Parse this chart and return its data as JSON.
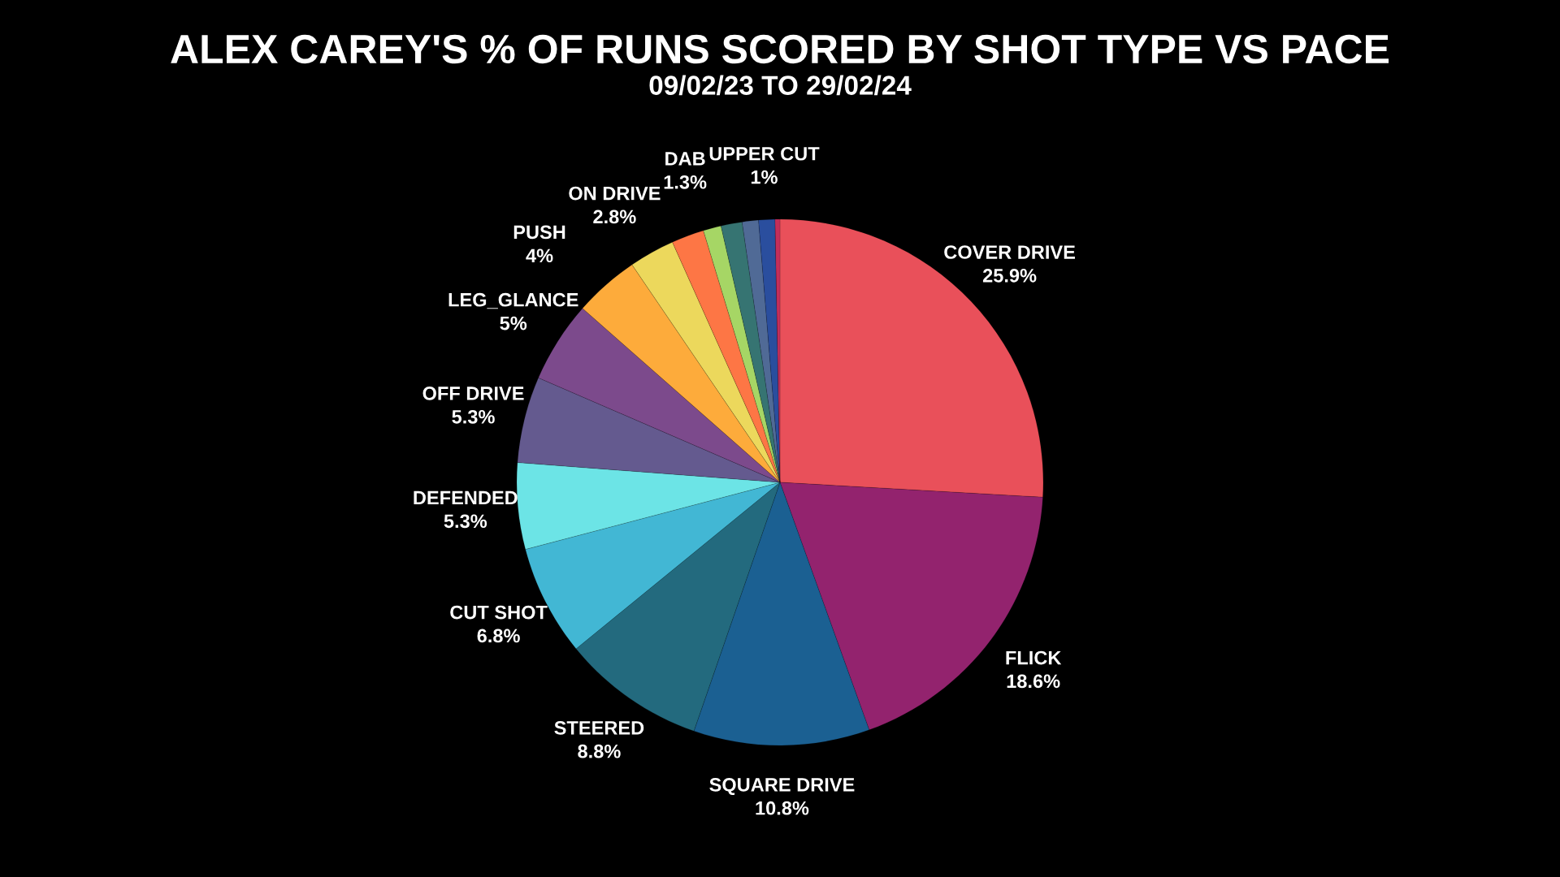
{
  "chart_data": {
    "type": "pie",
    "title": "ALEX CAREY'S % OF RUNS SCORED BY SHOT TYPE VS PACE",
    "subtitle": "09/02/23 TO 29/02/24",
    "categories": [
      "COVER DRIVE",
      "FLICK",
      "SQUARE DRIVE",
      "STEERED",
      "CUT SHOT",
      "DEFENDED",
      "OFF DRIVE",
      "LEG_GLANCE",
      "PUSH",
      "ON DRIVE",
      null,
      null,
      "DAB",
      null,
      "UPPER CUT",
      null
    ],
    "values": [
      25.9,
      18.6,
      10.8,
      8.8,
      6.8,
      5.3,
      5.3,
      5,
      4,
      2.8,
      2.0,
      1.1,
      1.3,
      1.0,
      1,
      0.3
    ],
    "value_labels": [
      "25.9%",
      "18.6%",
      "10.8%",
      "8.8%",
      "6.8%",
      "5.3%",
      "5.3%",
      "5%",
      "4%",
      "2.8%",
      null,
      null,
      "1.3%",
      null,
      "1%",
      null
    ],
    "colors": [
      "#e9505a",
      "#93236e",
      "#1b6092",
      "#236a7e",
      "#42b7d4",
      "#6ce4e6",
      "#645a8f",
      "#7c4a8c",
      "#fdab3b",
      "#ecd85c",
      "#fd7645",
      "#a6d665",
      "#367472",
      "#506a96",
      "#2a4e9e",
      "#c42e5a"
    ]
  }
}
